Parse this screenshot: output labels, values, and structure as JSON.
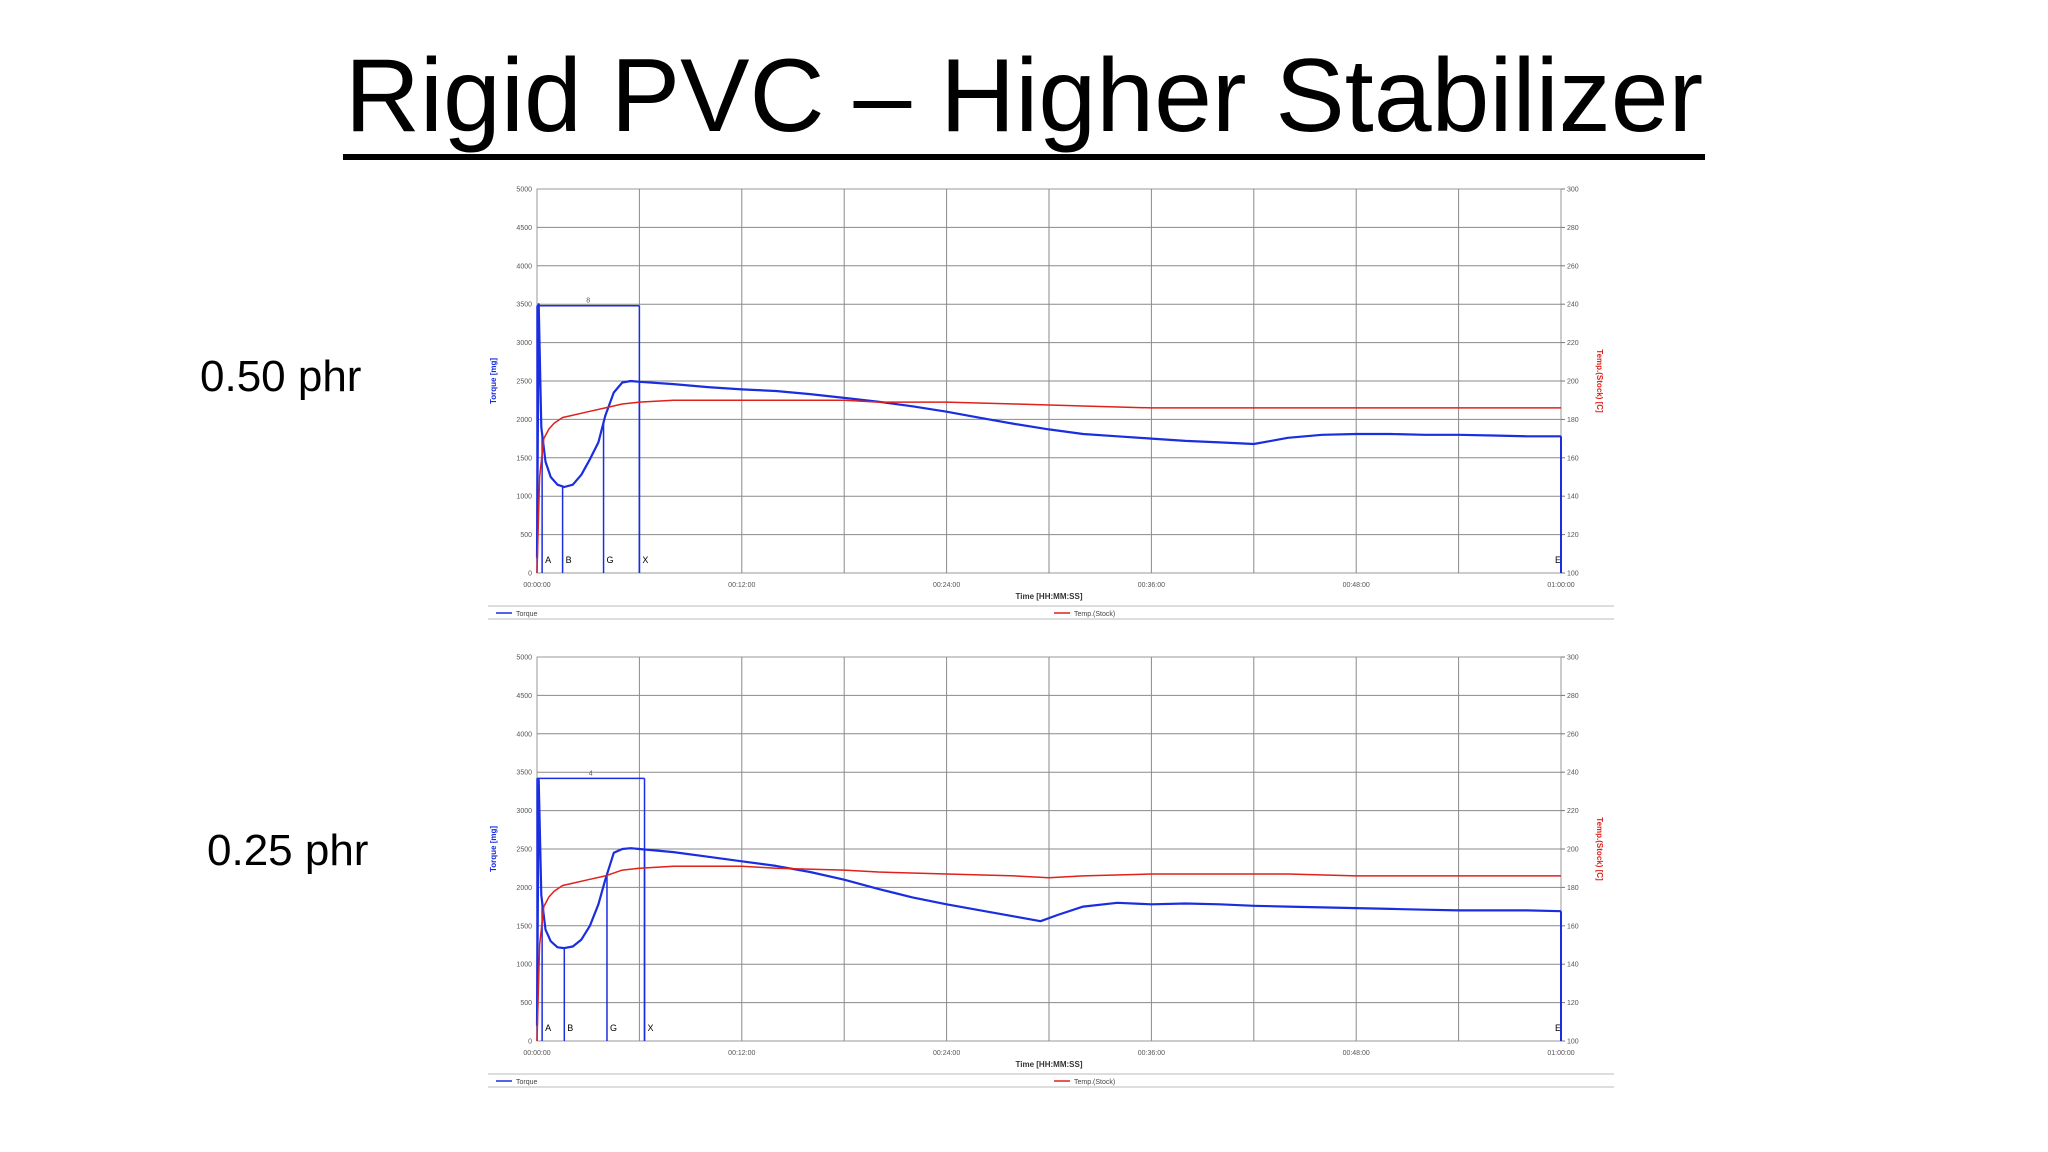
{
  "title": "Rigid PVC – Higher Stabilizer",
  "row_labels": [
    "0.50 phr",
    "0.25 phr"
  ],
  "colors": {
    "torque": "#1a2ee0",
    "temperature": "#e0201a",
    "grid": "#8a8a8a"
  },
  "chart_data": [
    {
      "type": "line",
      "xlabel": "Time [HH:MM:SS]",
      "ylabel": "Torque [mg]",
      "y2label": "Temp.(Stock) [C]",
      "x_unit": "minutes",
      "xlim": [
        0,
        60
      ],
      "ylim": [
        0,
        5000
      ],
      "y2lim": [
        100,
        300
      ],
      "x_tick_labels": [
        "00:00:00",
        "00:12:00",
        "00:24:00",
        "00:36:00",
        "00:48:00",
        "01:00:00"
      ],
      "y_tick_labels": [
        "0",
        "500",
        "1000",
        "1500",
        "2000",
        "2500",
        "3000",
        "3500",
        "4000",
        "4500",
        "5000"
      ],
      "y2_tick_labels": [
        "100",
        "120",
        "140",
        "160",
        "180",
        "200",
        "220",
        "240",
        "260",
        "280",
        "300"
      ],
      "legend": [
        "Torque",
        "Temp.(Stock)"
      ],
      "legend_position": "bottom",
      "grid": true,
      "markers": [
        {
          "label": "A",
          "x": 0.3
        },
        {
          "label": "B",
          "x": 1.5
        },
        {
          "label": "G",
          "x": 3.9
        },
        {
          "label": "X",
          "x": 6.0
        },
        {
          "label": "E",
          "x": 60
        }
      ],
      "bracket": {
        "label": "8",
        "x_start": 0,
        "x_end": 6.0,
        "y": 3480
      },
      "series": [
        {
          "name": "Torque",
          "axis": "left",
          "x": [
            0,
            0.1,
            0.25,
            0.5,
            0.8,
            1.2,
            1.6,
            2.1,
            2.6,
            3.1,
            3.6,
            4.0,
            4.5,
            5.0,
            5.5,
            6.0,
            8,
            10,
            12,
            14,
            16,
            18,
            20,
            22,
            24,
            26,
            28,
            30,
            32,
            34,
            36,
            38,
            40,
            42,
            43,
            44,
            46,
            48,
            50,
            52,
            54,
            56,
            58,
            60
          ],
          "y": [
            200,
            3500,
            1900,
            1450,
            1250,
            1150,
            1120,
            1150,
            1280,
            1480,
            1700,
            2050,
            2350,
            2480,
            2500,
            2490,
            2460,
            2420,
            2390,
            2370,
            2330,
            2280,
            2230,
            2170,
            2100,
            2020,
            1940,
            1870,
            1810,
            1780,
            1750,
            1720,
            1700,
            1680,
            1720,
            1760,
            1800,
            1810,
            1810,
            1800,
            1800,
            1790,
            1780,
            1780
          ]
        },
        {
          "name": "Temp.(Stock)",
          "axis": "right",
          "x": [
            0,
            0.15,
            0.4,
            0.7,
            1.0,
            1.5,
            2.0,
            3.0,
            4.0,
            5.0,
            6.0,
            8,
            10,
            12,
            14,
            18,
            20,
            24,
            28,
            32,
            36,
            40,
            44,
            48,
            52,
            56,
            60
          ],
          "y": [
            100,
            150,
            170,
            175,
            178,
            181,
            182,
            184,
            186,
            188,
            189,
            190,
            190,
            190,
            190,
            190,
            189,
            189,
            188,
            187,
            186,
            186,
            186,
            186,
            186,
            186,
            186
          ]
        }
      ]
    },
    {
      "type": "line",
      "xlabel": "Time [HH:MM:SS]",
      "ylabel": "Torque [mg]",
      "y2label": "Temp.(Stock) [C]",
      "x_unit": "minutes",
      "xlim": [
        0,
        60
      ],
      "ylim": [
        0,
        5000
      ],
      "y2lim": [
        100,
        300
      ],
      "x_tick_labels": [
        "00:00:00",
        "00:12:00",
        "00:24:00",
        "00:36:00",
        "00:48:00",
        "01:00:00"
      ],
      "y_tick_labels": [
        "0",
        "500",
        "1000",
        "1500",
        "2000",
        "2500",
        "3000",
        "3500",
        "4000",
        "4500",
        "5000"
      ],
      "y2_tick_labels": [
        "100",
        "120",
        "140",
        "160",
        "180",
        "200",
        "220",
        "240",
        "260",
        "280",
        "300"
      ],
      "legend": [
        "Torque",
        "Temp.(Stock)"
      ],
      "legend_position": "bottom",
      "grid": true,
      "markers": [
        {
          "label": "A",
          "x": 0.3
        },
        {
          "label": "B",
          "x": 1.6
        },
        {
          "label": "G",
          "x": 4.1
        },
        {
          "label": "X",
          "x": 6.3
        },
        {
          "label": "E",
          "x": 60
        }
      ],
      "bracket": {
        "label": "4",
        "x_start": 0,
        "x_end": 6.3,
        "y": 3420
      },
      "series": [
        {
          "name": "Torque",
          "axis": "left",
          "x": [
            0,
            0.1,
            0.25,
            0.5,
            0.8,
            1.2,
            1.6,
            2.1,
            2.6,
            3.1,
            3.6,
            4.0,
            4.5,
            5.0,
            5.5,
            6.0,
            8,
            10,
            12,
            14,
            16,
            18,
            20,
            22,
            24,
            26,
            28,
            29.5,
            30.5,
            32,
            34,
            36,
            38,
            40,
            42,
            44,
            46,
            48,
            50,
            52,
            54,
            56,
            58,
            60
          ],
          "y": [
            200,
            3400,
            1900,
            1450,
            1300,
            1220,
            1210,
            1230,
            1320,
            1500,
            1780,
            2100,
            2450,
            2500,
            2510,
            2500,
            2460,
            2400,
            2340,
            2280,
            2200,
            2100,
            1980,
            1870,
            1780,
            1700,
            1620,
            1560,
            1640,
            1750,
            1800,
            1780,
            1790,
            1780,
            1760,
            1750,
            1740,
            1730,
            1720,
            1710,
            1700,
            1700,
            1700,
            1690
          ]
        },
        {
          "name": "Temp.(Stock)",
          "axis": "right",
          "x": [
            0,
            0.15,
            0.4,
            0.7,
            1.0,
            1.5,
            2.0,
            3.0,
            4.0,
            5.0,
            6.0,
            8,
            10,
            12,
            14,
            18,
            20,
            24,
            28,
            30,
            32,
            36,
            40,
            44,
            48,
            52,
            56,
            60
          ],
          "y": [
            100,
            150,
            170,
            175,
            178,
            181,
            182,
            184,
            186,
            189,
            190,
            191,
            191,
            191,
            190,
            189,
            188,
            187,
            186,
            185,
            186,
            187,
            187,
            187,
            186,
            186,
            186,
            186
          ]
        }
      ]
    }
  ]
}
